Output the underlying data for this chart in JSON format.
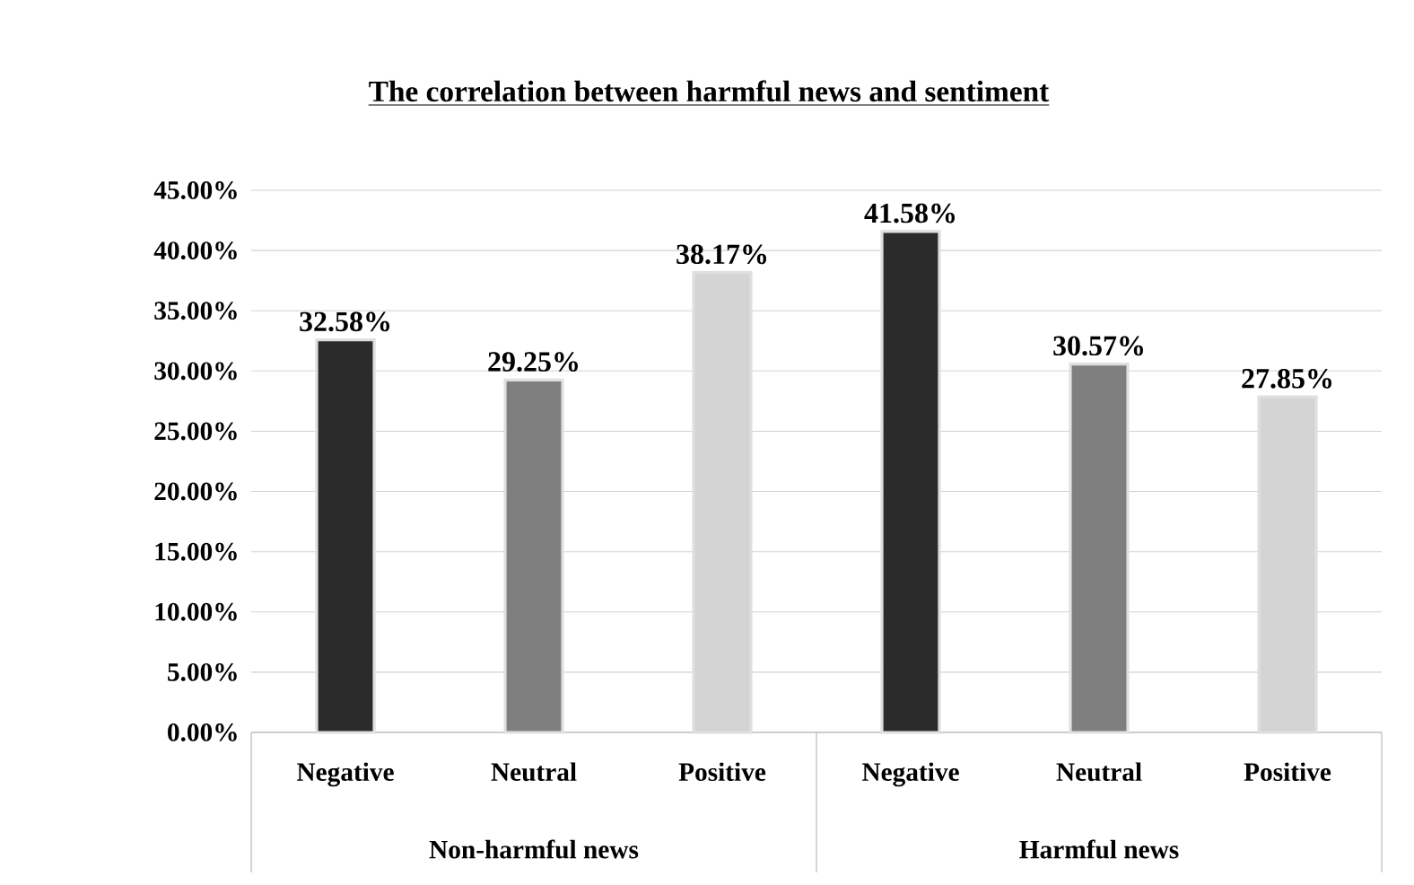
{
  "chart_data": {
    "type": "bar",
    "title": "The correlation between harmful news and sentiment",
    "categories": [
      "Negative",
      "Neutral",
      "Positive",
      "Negative",
      "Neutral",
      "Positive"
    ],
    "values": [
      32.58,
      29.25,
      38.17,
      41.58,
      30.57,
      27.85
    ],
    "value_labels": [
      "32.58%",
      "29.25%",
      "38.17%",
      "41.58%",
      "30.57%",
      "27.85%"
    ],
    "colors": [
      "#2b2b2b",
      "#7f7f7f",
      "#d4d4d4",
      "#2b2b2b",
      "#7f7f7f",
      "#d4d4d4"
    ],
    "ylim": [
      0,
      45
    ],
    "yticks": [
      {
        "value": 0,
        "label": "0.00%"
      },
      {
        "value": 5,
        "label": "5.00%"
      },
      {
        "value": 10,
        "label": "10.00%"
      },
      {
        "value": 15,
        "label": "15.00%"
      },
      {
        "value": 20,
        "label": "20.00%"
      },
      {
        "value": 25,
        "label": "25.00%"
      },
      {
        "value": 30,
        "label": "30.00%"
      },
      {
        "value": 35,
        "label": "35.00%"
      },
      {
        "value": 40,
        "label": "40.00%"
      },
      {
        "value": 45,
        "label": "45.00%"
      }
    ],
    "grid": "y",
    "annotations": [
      "Non-harmful news",
      "Harmful news"
    ]
  }
}
